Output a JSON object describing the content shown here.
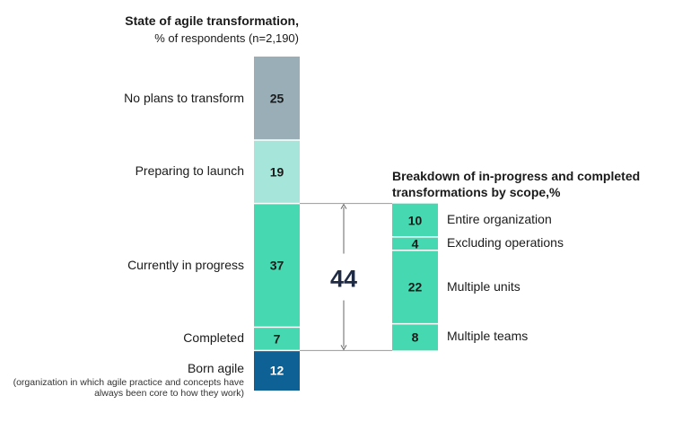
{
  "chart_data": [
    {
      "type": "bar",
      "stacked": true,
      "title": "State of agile transformation,",
      "subtitle": "% of respondents (n=2,190)",
      "categories": [
        "No plans to transform",
        "Preparing to launch",
        "Currently in progress",
        "Completed",
        "Born agile"
      ],
      "category_notes": [
        "",
        "",
        "",
        "",
        "(organization in which agile practice and concepts have always been core to how they work)"
      ],
      "values": [
        25,
        19,
        37,
        7,
        12
      ],
      "colors": [
        "#9aaeb8",
        "#a6e6da",
        "#46d8b0",
        "#46d8b0",
        "#0e6194"
      ],
      "value_text_colors": [
        "#1a1a1a",
        "#1a1a1a",
        "#1a1a1a",
        "#1a1a1a",
        "#ffffff"
      ]
    },
    {
      "type": "bar",
      "stacked": true,
      "title": "Breakdown of in-progress and completed transformations by scope,%",
      "categories": [
        "Entire organization",
        "Excluding operations",
        "Multiple units",
        "Multiple teams"
      ],
      "values": [
        10,
        4,
        22,
        8
      ],
      "colors": [
        "#46d8b0",
        "#46d8b0",
        "#46d8b0",
        "#46d8b0"
      ]
    }
  ],
  "bracket": {
    "total": "44"
  }
}
